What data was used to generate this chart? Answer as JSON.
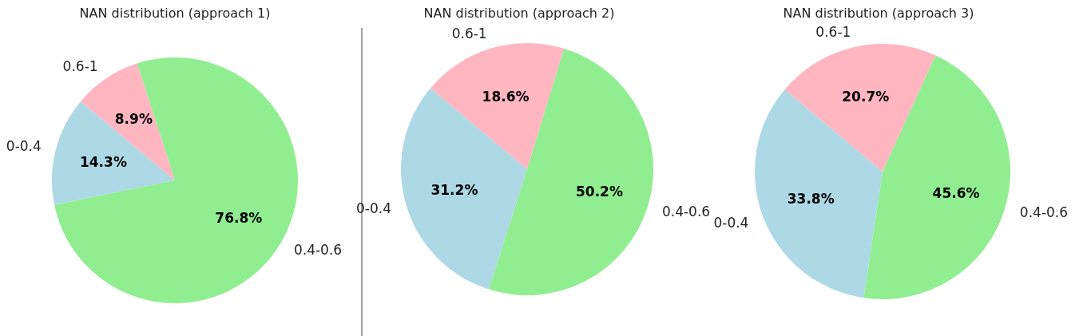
{
  "chart_data": [
    {
      "type": "pie",
      "title": "NAN distribution (approach 1)",
      "categories": [
        "0-0.4",
        "0.4-0.6",
        "0.6-1"
      ],
      "values": [
        14.3,
        76.8,
        8.9
      ],
      "colors": [
        "#add8e6",
        "#90ee90",
        "#ffb6c1"
      ],
      "value_labels": [
        "14.3%",
        "76.8%",
        "8.9%"
      ]
    },
    {
      "type": "pie",
      "title": "NAN distribution (approach 2)",
      "categories": [
        "0-0.4",
        "0.4-0.6",
        "0.6-1"
      ],
      "values": [
        31.2,
        50.2,
        18.6
      ],
      "colors": [
        "#add8e6",
        "#90ee90",
        "#ffb6c1"
      ],
      "value_labels": [
        "31.2%",
        "50.2%",
        "18.6%"
      ]
    },
    {
      "type": "pie",
      "title": "NAN distribution (approach 3)",
      "categories": [
        "0-0.4",
        "0.4-0.6",
        "0.6-1"
      ],
      "values": [
        33.8,
        45.6,
        20.7
      ],
      "colors": [
        "#add8e6",
        "#90ee90",
        "#ffb6c1"
      ],
      "value_labels": [
        "33.8%",
        "45.6%",
        "20.7%"
      ]
    }
  ]
}
